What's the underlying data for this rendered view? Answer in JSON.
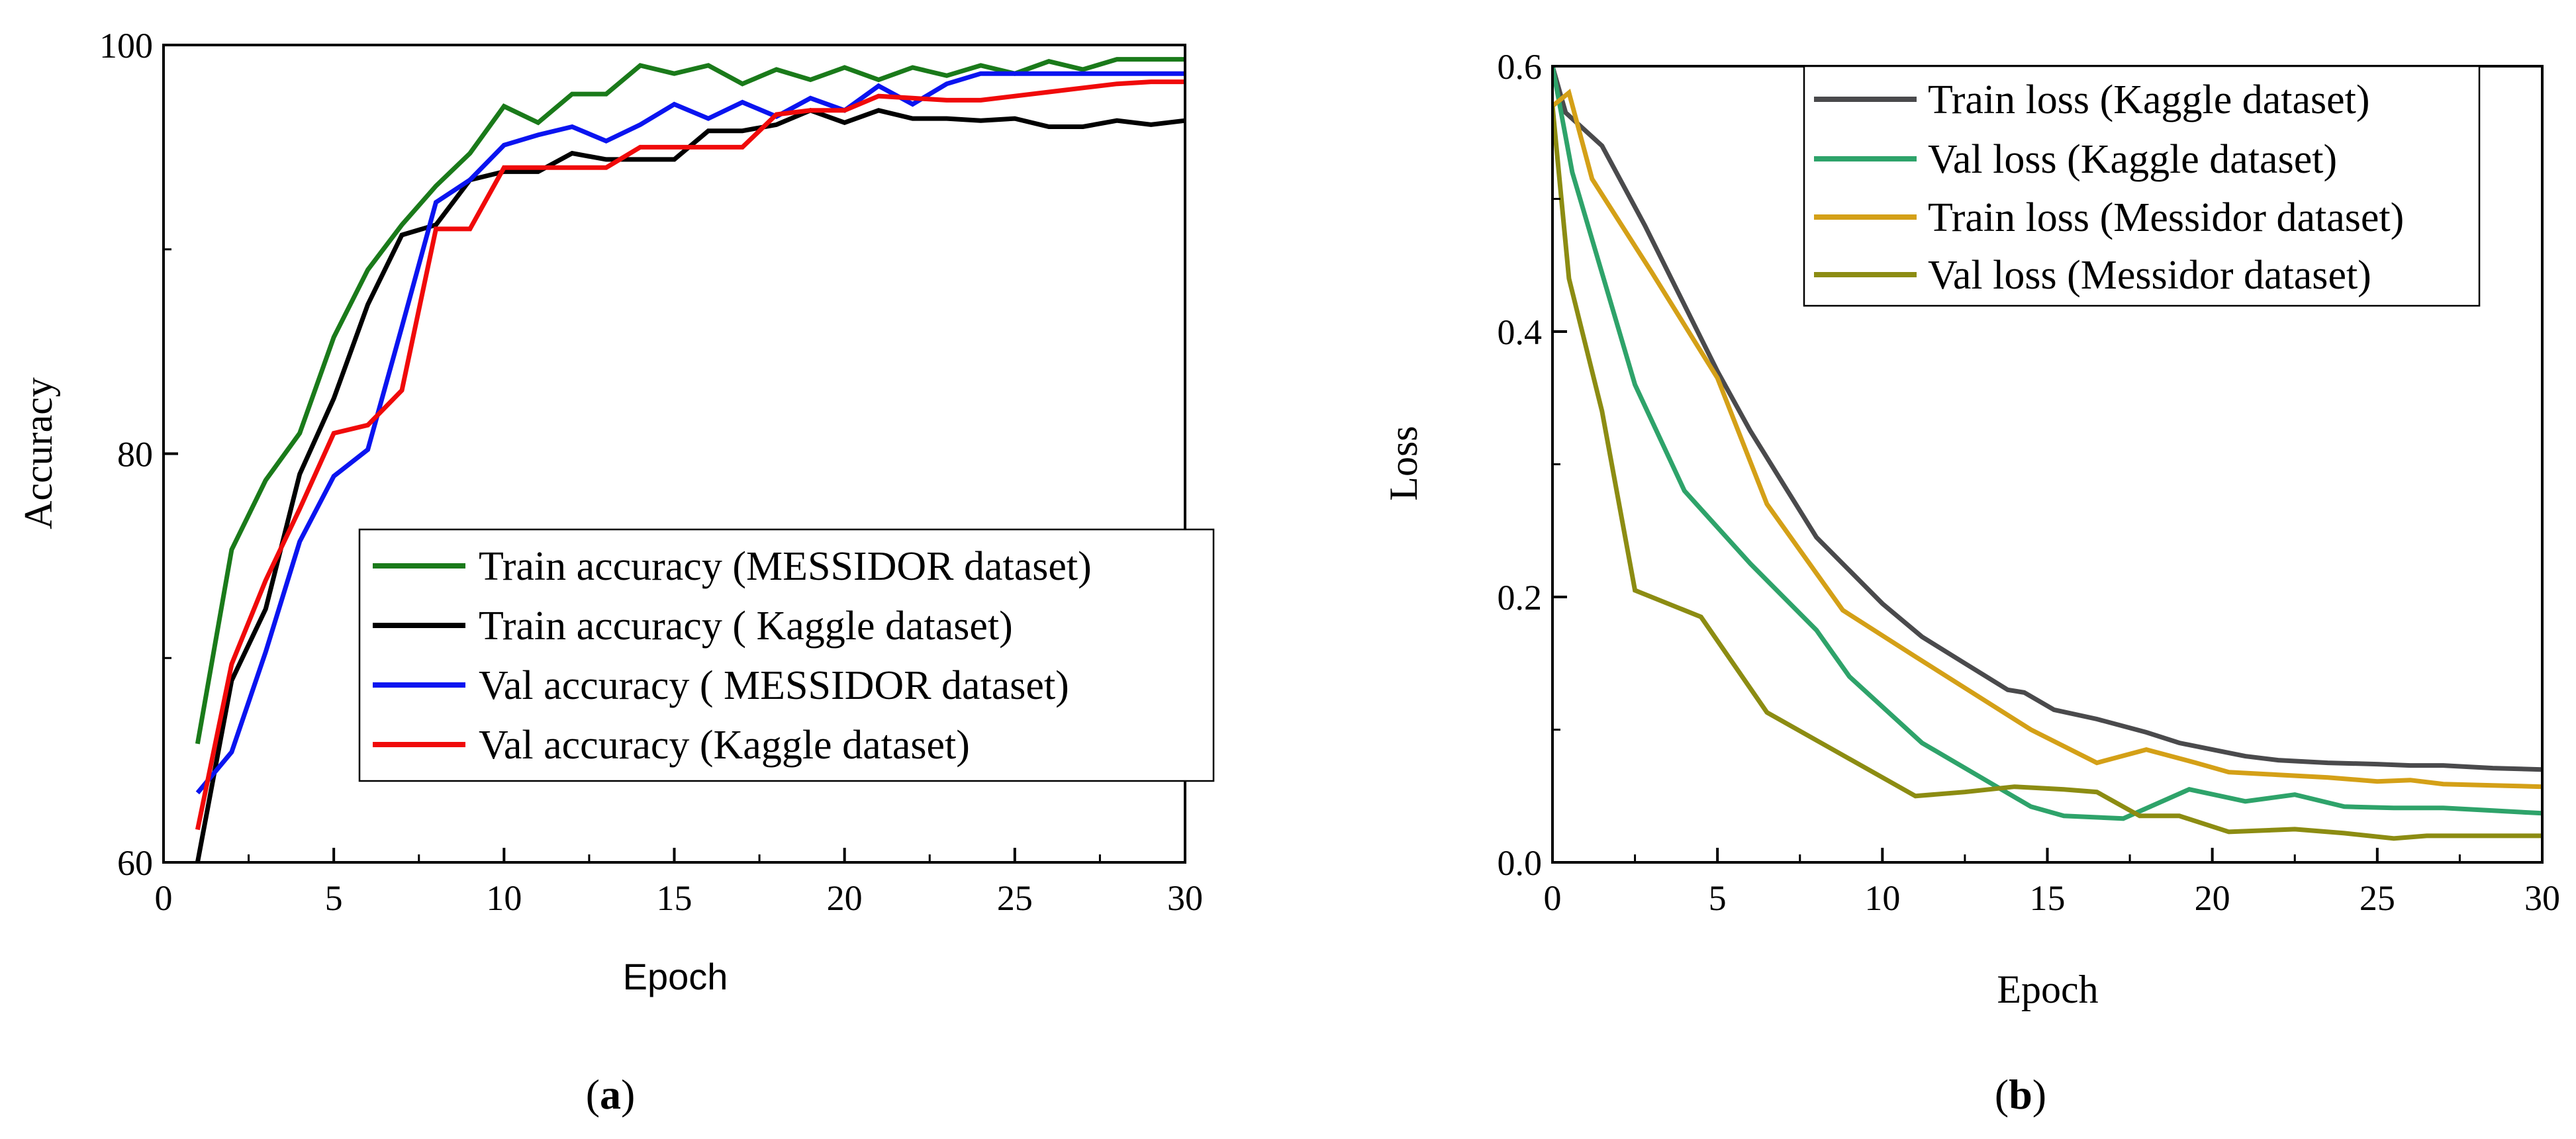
{
  "chart_data": [
    {
      "id": "a",
      "type": "line",
      "panel_label": {
        "open": "(",
        "letter": "a",
        "close": ")"
      },
      "xlabel": "Epoch",
      "ylabel": "Accuracy",
      "xlim": [
        0,
        30
      ],
      "ylim": [
        60,
        100
      ],
      "xticks": [
        0,
        5,
        10,
        15,
        20,
        25,
        30
      ],
      "yticks": [
        60,
        80,
        100
      ],
      "legend_position": "lower-right",
      "series": [
        {
          "name": "Train accuracy (MESSIDOR dataset)",
          "color": "#1a7a1a",
          "x": [
            1,
            2,
            3,
            4,
            5,
            6,
            7,
            8,
            9,
            10,
            11,
            12,
            13,
            14,
            15,
            16,
            17,
            18,
            19,
            20,
            21,
            22,
            23,
            24,
            25,
            26,
            27,
            28,
            29,
            30
          ],
          "values": [
            65.8,
            75.3,
            78.7,
            81,
            85.7,
            89,
            91.2,
            93.1,
            94.7,
            97,
            96.2,
            97.6,
            97.6,
            99,
            98.6,
            99,
            98.1,
            98.8,
            98.3,
            98.9,
            98.3,
            98.9,
            98.5,
            99,
            98.6,
            99.2,
            98.8,
            99.3,
            99.3,
            99.3
          ]
        },
        {
          "name": "Train accuracy ( Kaggle dataset)",
          "color": "#000000",
          "x": [
            1,
            2,
            3,
            4,
            5,
            6,
            7,
            8,
            9,
            10,
            11,
            12,
            13,
            14,
            15,
            16,
            17,
            18,
            19,
            20,
            21,
            22,
            23,
            24,
            25,
            26,
            27,
            28,
            29,
            30
          ],
          "values": [
            60,
            68.9,
            72.4,
            79,
            82.7,
            87.3,
            90.7,
            91.2,
            93.4,
            93.8,
            93.8,
            94.7,
            94.4,
            94.4,
            94.4,
            95.8,
            95.8,
            96.1,
            96.8,
            96.2,
            96.8,
            96.4,
            96.4,
            96.3,
            96.4,
            96,
            96,
            96.3,
            96.1,
            96.3
          ]
        },
        {
          "name": "Val accuracy ( MESSIDOR dataset)",
          "color": "#0a14f0",
          "x": [
            1,
            2,
            3,
            4,
            5,
            6,
            7,
            8,
            9,
            10,
            11,
            12,
            13,
            14,
            15,
            16,
            17,
            18,
            19,
            20,
            21,
            22,
            23,
            24,
            25,
            26,
            27,
            28,
            29,
            30
          ],
          "values": [
            63.4,
            65.4,
            70.3,
            75.7,
            78.9,
            80.2,
            86.2,
            92.3,
            93.4,
            95.1,
            95.6,
            96,
            95.3,
            96.1,
            97.1,
            96.4,
            97.2,
            96.5,
            97.4,
            96.8,
            98,
            97.1,
            98.1,
            98.6,
            98.6,
            98.6,
            98.6,
            98.6,
            98.6,
            98.6
          ]
        },
        {
          "name": "Val accuracy (Kaggle dataset)",
          "color": "#f00a0a",
          "x": [
            1,
            2,
            3,
            4,
            5,
            6,
            7,
            8,
            9,
            10,
            11,
            12,
            13,
            14,
            15,
            16,
            17,
            18,
            19,
            20,
            21,
            22,
            23,
            24,
            25,
            26,
            27,
            28,
            29,
            30
          ],
          "values": [
            61.6,
            69.7,
            73.8,
            77.3,
            81,
            81.4,
            83.1,
            91,
            91,
            94,
            94,
            94,
            94,
            95,
            95,
            95,
            95,
            96.6,
            96.8,
            96.8,
            97.5,
            97.4,
            97.3,
            97.3,
            97.5,
            97.7,
            97.9,
            98.1,
            98.2,
            98.2
          ]
        }
      ]
    },
    {
      "id": "b",
      "type": "line",
      "panel_label": {
        "open": "(",
        "letter": "b",
        "close": ")"
      },
      "xlabel": "Epoch",
      "ylabel": "Loss",
      "xlim": [
        0,
        30
      ],
      "ylim": [
        0,
        0.6
      ],
      "xticks": [
        0,
        5,
        10,
        15,
        20,
        25,
        30
      ],
      "yticks": [
        0.0,
        0.2,
        0.4,
        0.6
      ],
      "ytick_labels": [
        "0.0",
        "0.2",
        "0.4",
        "0.6"
      ],
      "legend_position": "top-right",
      "series": [
        {
          "name": "Train loss (Kaggle dataset)",
          "color": "#4a4a4c",
          "x": [
            0,
            0.4,
            1.5,
            2.8,
            3.8,
            5,
            6,
            7,
            8,
            9,
            10,
            11.2,
            12.5,
            13.8,
            14.3,
            15.2,
            16.5,
            18,
            19,
            20,
            21,
            22,
            23.5,
            25,
            26,
            27,
            28.5,
            30
          ],
          "values": [
            0.6,
            0.565,
            0.54,
            0.48,
            0.43,
            0.37,
            0.325,
            0.285,
            0.245,
            0.22,
            0.195,
            0.17,
            0.15,
            0.13,
            0.128,
            0.115,
            0.108,
            0.098,
            0.09,
            0.085,
            0.08,
            0.077,
            0.075,
            0.074,
            0.073,
            0.073,
            0.071,
            0.07
          ]
        },
        {
          "name": "Val loss (Kaggle dataset)",
          "color": "#2ea36a",
          "x": [
            0,
            0.6,
            2.5,
            4,
            6,
            8,
            9,
            11.2,
            14.5,
            15.5,
            17.3,
            19.3,
            21,
            22.5,
            24,
            25.5,
            27,
            28.5,
            30
          ],
          "values": [
            0.6,
            0.52,
            0.36,
            0.28,
            0.225,
            0.175,
            0.14,
            0.09,
            0.042,
            0.035,
            0.033,
            0.055,
            0.046,
            0.051,
            0.042,
            0.041,
            0.041,
            0.039,
            0.037
          ]
        },
        {
          "name": "Train loss (Messidor dataset)",
          "color": "#d4a017",
          "x": [
            0,
            0.5,
            1.2,
            3,
            5,
            6.5,
            8.8,
            11,
            14.5,
            16.5,
            18,
            19.5,
            20.5,
            22,
            23.5,
            25,
            26,
            27,
            28.5,
            30
          ],
          "values": [
            0.57,
            0.58,
            0.515,
            0.445,
            0.365,
            0.27,
            0.19,
            0.155,
            0.1,
            0.075,
            0.085,
            0.075,
            0.068,
            0.066,
            0.064,
            0.061,
            0.062,
            0.059,
            0.058,
            0.057
          ]
        },
        {
          "name": "Val loss (Messidor dataset)",
          "color": "#8c8c12",
          "x": [
            0,
            0.5,
            1.5,
            2.5,
            4.5,
            6.5,
            11,
            12.5,
            14,
            15.5,
            16.5,
            17.8,
            19,
            20.5,
            22.5,
            24,
            25.5,
            26.5,
            28,
            30
          ],
          "values": [
            0.57,
            0.44,
            0.34,
            0.205,
            0.185,
            0.113,
            0.05,
            0.053,
            0.057,
            0.055,
            0.053,
            0.035,
            0.035,
            0.023,
            0.025,
            0.022,
            0.018,
            0.02,
            0.02,
            0.02
          ]
        }
      ]
    }
  ]
}
